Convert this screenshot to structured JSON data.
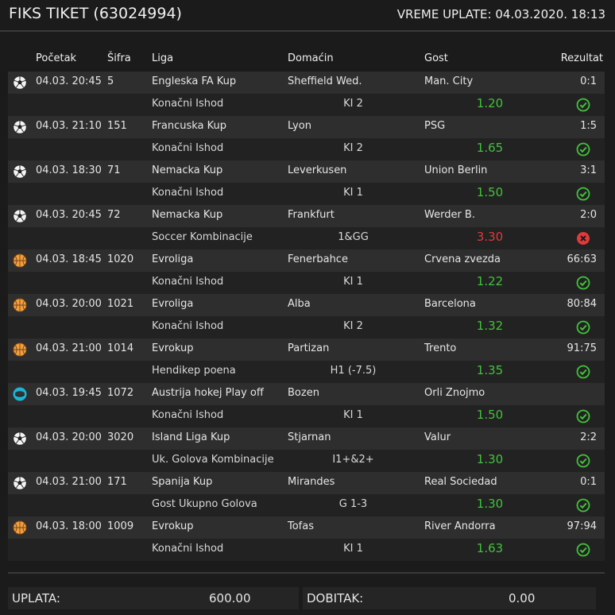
{
  "header": {
    "title": "FIKS TIKET (63024994)",
    "vreme": "VREME UPLATE: 04.03.2020. 18:13"
  },
  "columns": {
    "pocetak": "Početak",
    "sifra": "Šifra",
    "liga": "Liga",
    "domacin": "Domaćin",
    "gost": "Gost",
    "rezultat": "Rezultat"
  },
  "colors": {
    "win": "#43c23b",
    "loss": "#e03a3a",
    "hockey": "#19b4d6",
    "basketball": "#f0a040"
  },
  "matches": [
    {
      "sport": "soccer-ball-icon",
      "time": "04.03. 20:45",
      "code": "5",
      "league": "Engleska FA Kup",
      "home": "Sheffield Wed.",
      "away": "Man. City",
      "result": "0:1",
      "tip_type": "Konačni Ishod",
      "pick": "KI 2",
      "odd": "1.20",
      "status": "win"
    },
    {
      "sport": "soccer-ball-icon",
      "time": "04.03. 21:10",
      "code": "151",
      "league": "Francuska Kup",
      "home": "Lyon",
      "away": "PSG",
      "result": "1:5",
      "tip_type": "Konačni Ishod",
      "pick": "KI 2",
      "odd": "1.65",
      "status": "win"
    },
    {
      "sport": "soccer-ball-icon",
      "time": "04.03. 18:30",
      "code": "71",
      "league": "Nemacka Kup",
      "home": "Leverkusen",
      "away": "Union Berlin",
      "result": "3:1",
      "tip_type": "Konačni Ishod",
      "pick": "KI 1",
      "odd": "1.50",
      "status": "win"
    },
    {
      "sport": "soccer-ball-icon",
      "time": "04.03. 20:45",
      "code": "72",
      "league": "Nemacka Kup",
      "home": "Frankfurt",
      "away": "Werder B.",
      "result": "2:0",
      "tip_type": "Soccer Kombinacije",
      "pick": "1&GG",
      "odd": "3.30",
      "status": "loss"
    },
    {
      "sport": "basketball-icon",
      "time": "04.03. 18:45",
      "code": "1020",
      "league": "Evroliga",
      "home": "Fenerbahce",
      "away": "Crvena zvezda",
      "result": "66:63",
      "tip_type": "Konačni Ishod",
      "pick": "KI 1",
      "odd": "1.22",
      "status": "win"
    },
    {
      "sport": "basketball-icon",
      "time": "04.03. 20:00",
      "code": "1021",
      "league": "Evroliga",
      "home": "Alba",
      "away": "Barcelona",
      "result": "80:84",
      "tip_type": "Konačni Ishod",
      "pick": "KI 2",
      "odd": "1.32",
      "status": "win"
    },
    {
      "sport": "basketball-icon",
      "time": "04.03. 21:00",
      "code": "1014",
      "league": "Evrokup",
      "home": "Partizan",
      "away": "Trento",
      "result": "91:75",
      "tip_type": "Hendikep poena",
      "pick": "H1 (-7.5)",
      "odd": "1.35",
      "status": "win"
    },
    {
      "sport": "hockey-icon",
      "time": "04.03. 19:45",
      "code": "1072",
      "league": "Austrija hokej Play off",
      "home": "Bozen",
      "away": "Orli Znojmo",
      "result": "",
      "tip_type": "Konačni Ishod",
      "pick": "KI 1",
      "odd": "1.50",
      "status": "win"
    },
    {
      "sport": "soccer-ball-icon",
      "time": "04.03. 20:00",
      "code": "3020",
      "league": "Island Liga Kup",
      "home": "Stjarnan",
      "away": "Valur",
      "result": "2:2",
      "tip_type": "Uk. Golova Kombinacije",
      "pick": "I1+&2+",
      "odd": "1.30",
      "status": "win"
    },
    {
      "sport": "soccer-ball-icon",
      "time": "04.03. 21:00",
      "code": "171",
      "league": "Spanija Kup",
      "home": "Mirandes",
      "away": "Real Sociedad",
      "result": "0:1",
      "tip_type": "Gost Ukupno Golova",
      "pick": "G 1-3",
      "odd": "1.30",
      "status": "win"
    },
    {
      "sport": "basketball-icon",
      "time": "04.03. 18:00",
      "code": "1009",
      "league": "Evrokup",
      "home": "Tofas",
      "away": "River Andorra",
      "result": "97:94",
      "tip_type": "Konačni Ishod",
      "pick": "KI 1",
      "odd": "1.63",
      "status": "win"
    }
  ],
  "footer": {
    "uplata_label": "UPLATA:",
    "uplata_value": "600.00",
    "dobitak_label": "DOBITAK:",
    "dobitak_value": "0.00"
  }
}
